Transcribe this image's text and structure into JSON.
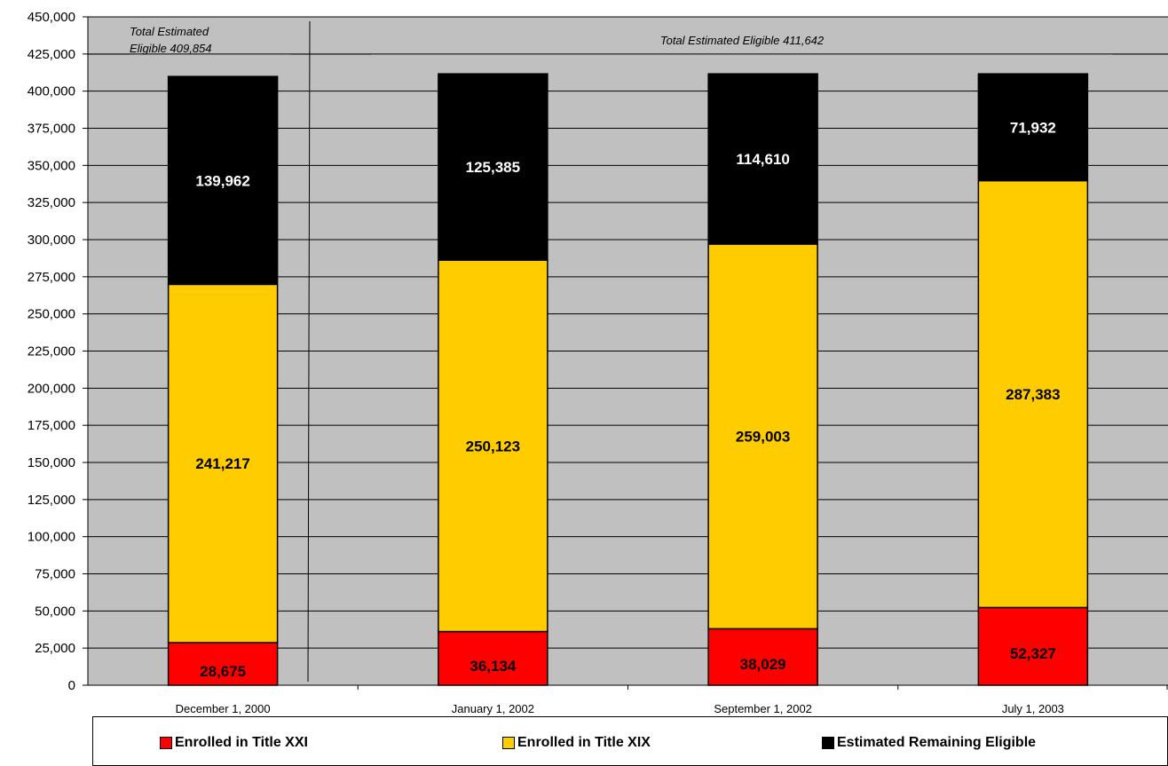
{
  "chart_data": {
    "type": "bar",
    "stacked": true,
    "categories": [
      "December 1, 2000",
      "January 1, 2002",
      "September 1, 2002",
      "July 1, 2003"
    ],
    "series": [
      {
        "name": "Enrolled in Title XXI",
        "color": "#ff0000",
        "values": [
          28675,
          36134,
          38029,
          52327
        ],
        "labels": [
          "28,675",
          "36,134",
          "38,029",
          "52,327"
        ],
        "label_color": "#000000"
      },
      {
        "name": "Enrolled in Title XIX",
        "color": "#ffcc00",
        "values": [
          241217,
          250123,
          259003,
          287383
        ],
        "labels": [
          "241,217",
          "250,123",
          "259,003",
          "287,383"
        ],
        "label_color": "#000000"
      },
      {
        "name": "Estimated Remaining Eligible",
        "color": "#000000",
        "values": [
          139962,
          125385,
          114610,
          71932
        ],
        "labels": [
          "139,962",
          "125,385",
          "114,610",
          "71,932"
        ],
        "label_color": "#ffffff"
      }
    ],
    "ylim": [
      0,
      450000
    ],
    "ytick_step": 25000,
    "ytick_labels": [
      "0",
      "25,000",
      "50,000",
      "75,000",
      "100,000",
      "125,000",
      "150,000",
      "175,000",
      "200,000",
      "225,000",
      "250,000",
      "275,000",
      "300,000",
      "325,000",
      "350,000",
      "375,000",
      "400,000",
      "425,000",
      "450,000"
    ],
    "grid": true,
    "plot_background": "#c0c0c0",
    "legend_position": "bottom",
    "annotations": {
      "first_period_line1": "Total  Estimated",
      "first_period_line2": "Eligible  409,854",
      "first_period_total": 409854,
      "later_periods": "Total  Estimated Eligible  411,642",
      "later_periods_total": 411642
    }
  }
}
